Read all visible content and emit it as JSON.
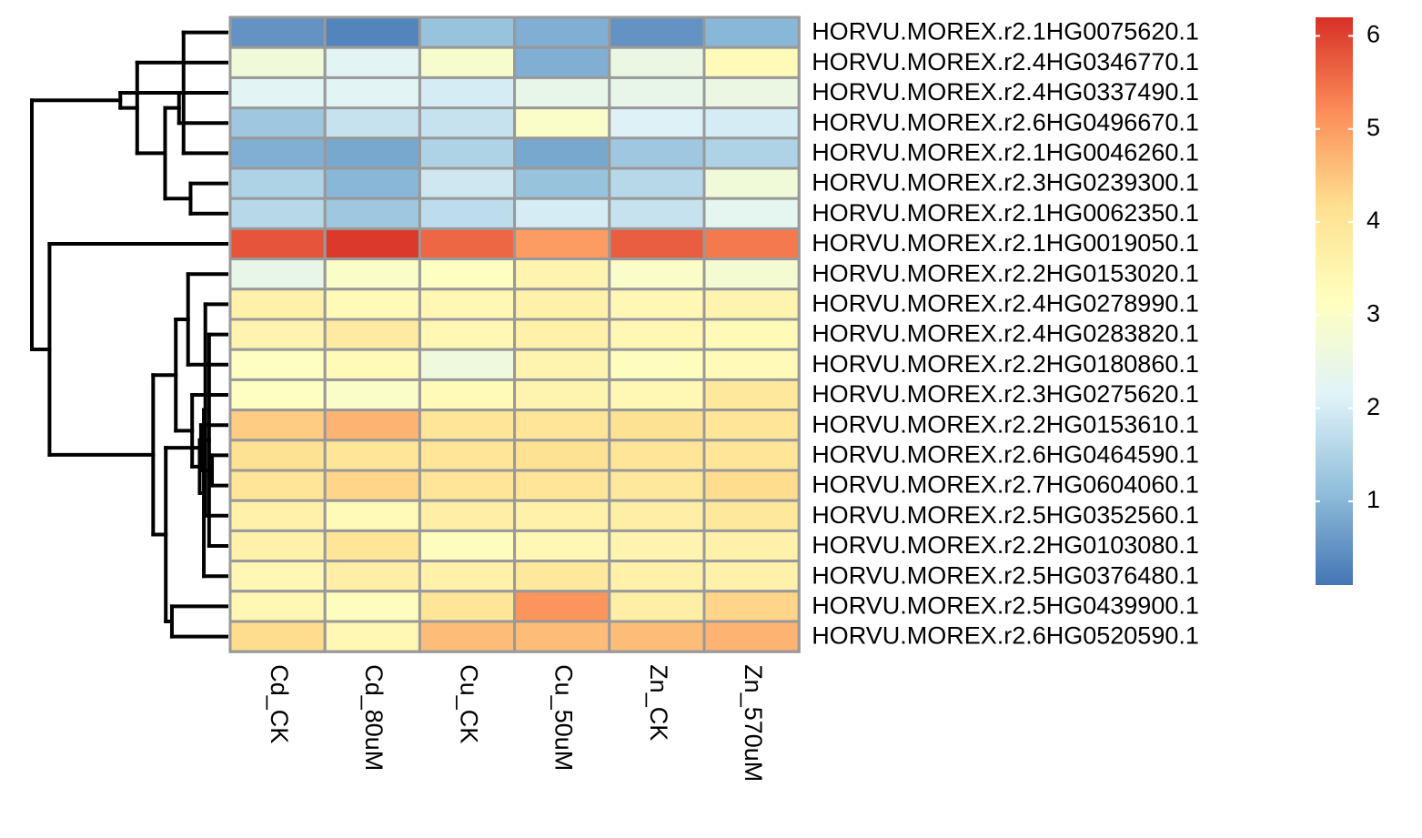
{
  "chart_data": {
    "type": "heatmap",
    "title": "",
    "columns": [
      "Cd_CK",
      "Cd_80uM",
      "Cu_CK",
      "Cu_50uM",
      "Zn_CK",
      "Zn_570uM"
    ],
    "rows": [
      "HORVU.MOREX.r2.1HG0075620.1",
      "HORVU.MOREX.r2.4HG0346770.1",
      "HORVU.MOREX.r2.4HG0337490.1",
      "HORVU.MOREX.r2.6HG0496670.1",
      "HORVU.MOREX.r2.1HG0046260.1",
      "HORVU.MOREX.r2.3HG0239300.1",
      "HORVU.MOREX.r2.1HG0062350.1",
      "HORVU.MOREX.r2.1HG0019050.1",
      "HORVU.MOREX.r2.2HG0153020.1",
      "HORVU.MOREX.r2.4HG0278990.1",
      "HORVU.MOREX.r2.4HG0283820.1",
      "HORVU.MOREX.r2.2HG0180860.1",
      "HORVU.MOREX.r2.3HG0275620.1",
      "HORVU.MOREX.r2.2HG0153610.1",
      "HORVU.MOREX.r2.6HG0464590.1",
      "HORVU.MOREX.r2.7HG0604060.1",
      "HORVU.MOREX.r2.5HG0352560.1",
      "HORVU.MOREX.r2.2HG0103080.1",
      "HORVU.MOREX.r2.5HG0376480.1",
      "HORVU.MOREX.r2.5HG0439900.1",
      "HORVU.MOREX.r2.6HG0520590.1"
    ],
    "values": [
      [
        0.5,
        0.3,
        1.2,
        0.9,
        0.5,
        1.0
      ],
      [
        2.7,
        2.2,
        2.9,
        0.9,
        2.5,
        3.3
      ],
      [
        2.2,
        2.2,
        2.0,
        2.4,
        2.4,
        2.5
      ],
      [
        1.3,
        1.8,
        1.8,
        3.0,
        2.1,
        2.0
      ],
      [
        0.9,
        0.8,
        1.5,
        0.8,
        1.3,
        1.5
      ],
      [
        1.5,
        1.0,
        1.9,
        1.2,
        1.6,
        2.7
      ],
      [
        1.6,
        1.3,
        1.7,
        2.0,
        1.8,
        2.3
      ],
      [
        5.8,
        6.1,
        5.6,
        5.0,
        5.7,
        5.4
      ],
      [
        2.4,
        3.0,
        3.1,
        3.5,
        3.0,
        2.8
      ],
      [
        3.6,
        3.3,
        3.4,
        3.6,
        3.4,
        3.5
      ],
      [
        3.5,
        3.8,
        3.4,
        3.6,
        3.4,
        3.3
      ],
      [
        3.1,
        3.3,
        2.6,
        3.5,
        3.2,
        3.3
      ],
      [
        3.1,
        3.0,
        3.3,
        3.5,
        3.4,
        3.9
      ],
      [
        4.4,
        4.7,
        4.0,
        4.0,
        4.1,
        4.0
      ],
      [
        4.1,
        4.0,
        4.0,
        4.1,
        4.0,
        4.0
      ],
      [
        4.0,
        4.3,
        4.0,
        4.0,
        3.9,
        4.2
      ],
      [
        3.6,
        3.3,
        3.7,
        3.6,
        3.7,
        3.9
      ],
      [
        3.6,
        4.0,
        3.2,
        3.4,
        3.5,
        3.6
      ],
      [
        3.4,
        3.7,
        3.6,
        3.9,
        3.6,
        3.6
      ],
      [
        3.4,
        3.2,
        4.0,
        5.1,
        3.7,
        4.3
      ],
      [
        4.2,
        3.4,
        4.6,
        4.6,
        4.6,
        4.7
      ]
    ],
    "color_scale": {
      "min": 0.1,
      "max": 6.2,
      "ticks": [
        1,
        2,
        3,
        4,
        5,
        6
      ],
      "stops": [
        "#4575b4",
        "#91bfdb",
        "#e0f3f8",
        "#ffffbf",
        "#fee090",
        "#fc8d59",
        "#d73027"
      ]
    },
    "cell_border_color": "#999999",
    "row_dendrogram": true,
    "legend_position": "right"
  }
}
